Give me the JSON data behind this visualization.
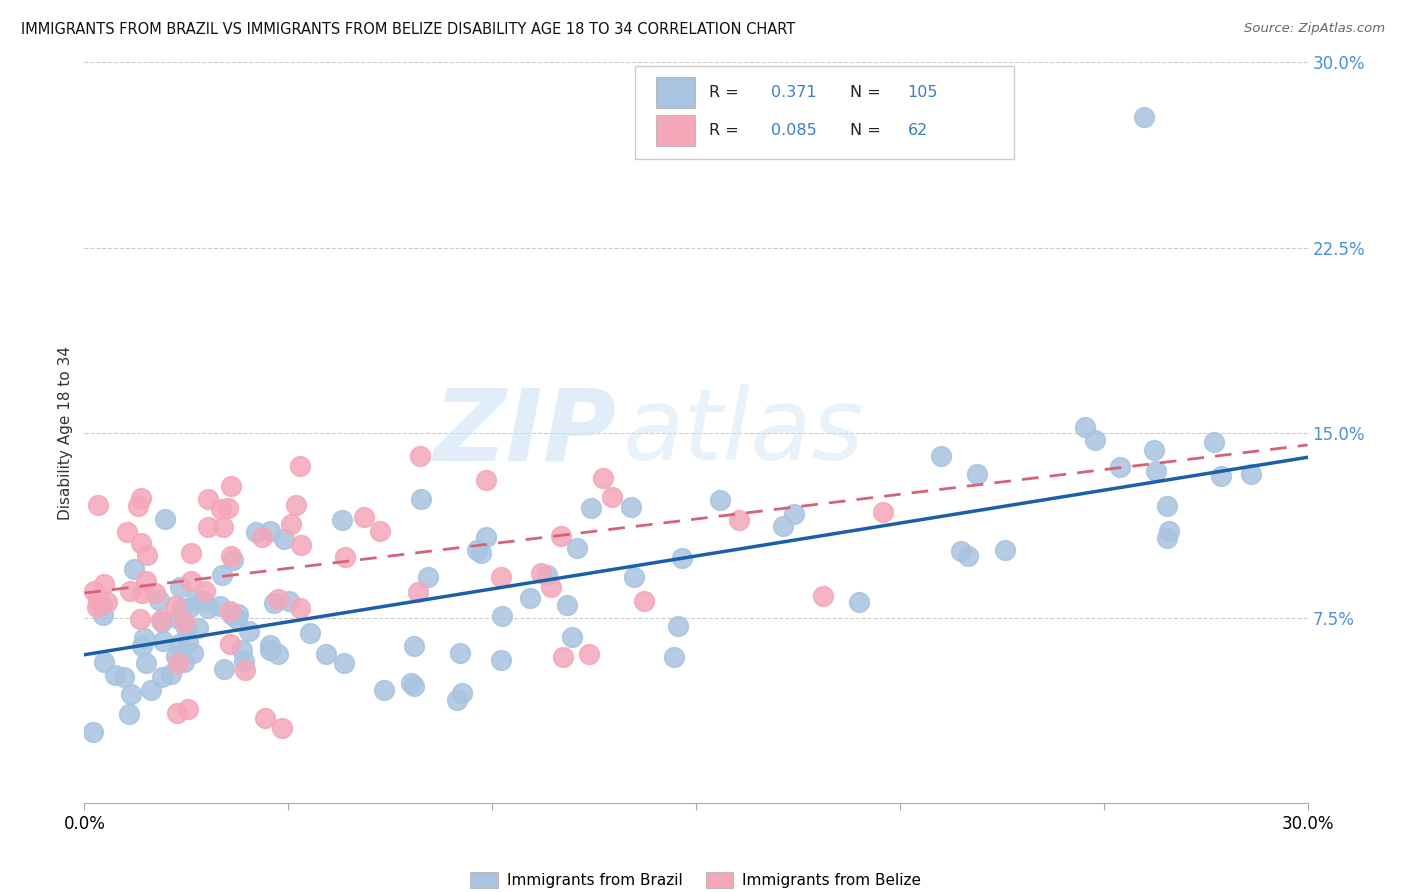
{
  "title": "IMMIGRANTS FROM BRAZIL VS IMMIGRANTS FROM BELIZE DISABILITY AGE 18 TO 34 CORRELATION CHART",
  "source": "Source: ZipAtlas.com",
  "ylabel": "Disability Age 18 to 34",
  "xlim": [
    0.0,
    0.3
  ],
  "ylim": [
    0.0,
    0.3
  ],
  "yticks": [
    0.075,
    0.15,
    0.225,
    0.3
  ],
  "ytick_labels": [
    "7.5%",
    "15.0%",
    "22.5%",
    "30.0%"
  ],
  "xticks": [
    0.0,
    0.05,
    0.1,
    0.15,
    0.2,
    0.25,
    0.3
  ],
  "xtick_labels": [
    "0.0%",
    "",
    "",
    "",
    "",
    "",
    "30.0%"
  ],
  "brazil_color": "#a8c4e0",
  "belize_color": "#f4a7b9",
  "brazil_line_color": "#1a5fa8",
  "belize_line_color": "#d4637a",
  "brazil_R": 0.371,
  "brazil_N": 105,
  "belize_R": 0.085,
  "belize_N": 62,
  "watermark_zip": "ZIP",
  "watermark_atlas": "atlas",
  "legend_brazil": "Immigrants from Brazil",
  "legend_belize": "Immigrants from Belize",
  "brazil_line_start_y": 0.06,
  "brazil_line_end_y": 0.14,
  "belize_line_start_y": 0.085,
  "belize_line_end_y": 0.145
}
